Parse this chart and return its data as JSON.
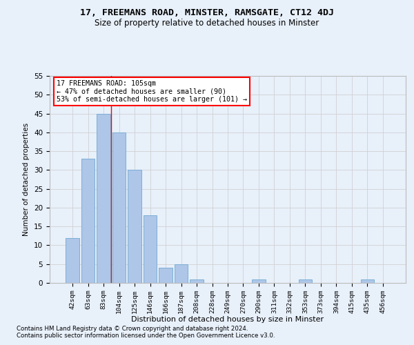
{
  "title": "17, FREEMANS ROAD, MINSTER, RAMSGATE, CT12 4DJ",
  "subtitle": "Size of property relative to detached houses in Minster",
  "xlabel": "Distribution of detached houses by size in Minster",
  "ylabel": "Number of detached properties",
  "categories": [
    "42sqm",
    "63sqm",
    "83sqm",
    "104sqm",
    "125sqm",
    "146sqm",
    "166sqm",
    "187sqm",
    "208sqm",
    "228sqm",
    "249sqm",
    "270sqm",
    "290sqm",
    "311sqm",
    "332sqm",
    "353sqm",
    "373sqm",
    "394sqm",
    "415sqm",
    "435sqm",
    "456sqm"
  ],
  "values": [
    12,
    33,
    45,
    40,
    30,
    18,
    4,
    5,
    1,
    0,
    0,
    0,
    1,
    0,
    0,
    1,
    0,
    0,
    0,
    1,
    0
  ],
  "bar_color": "#aec6e8",
  "bar_edge_color": "#7aafd4",
  "ylim": [
    0,
    55
  ],
  "yticks": [
    0,
    5,
    10,
    15,
    20,
    25,
    30,
    35,
    40,
    45,
    50,
    55
  ],
  "property_label": "17 FREEMANS ROAD: 105sqm",
  "annotation_line1": "← 47% of detached houses are smaller (90)",
  "annotation_line2": "53% of semi-detached houses are larger (101) →",
  "annotation_box_color": "white",
  "annotation_border_color": "red",
  "red_line_x": 2.5,
  "grid_color": "#cccccc",
  "background_color": "#e8f0fa",
  "footer_line1": "Contains HM Land Registry data © Crown copyright and database right 2024.",
  "footer_line2": "Contains public sector information licensed under the Open Government Licence v3.0."
}
